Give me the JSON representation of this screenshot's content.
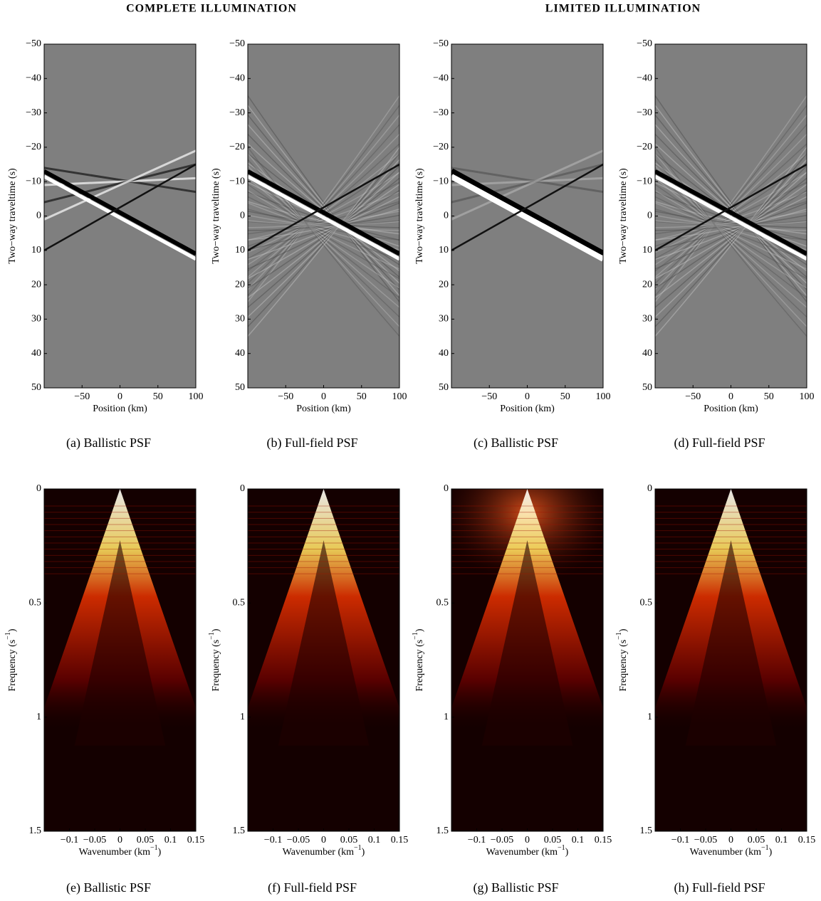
{
  "headers": [
    "COMPLETE ILLUMINATION",
    "LIMITED ILLUMINATION"
  ],
  "chart_data": [
    {
      "type": "image",
      "colormap": "gray",
      "caption": "(a) Ballistic PSF",
      "xlabel": "Position (km)",
      "ylabel": "Two−way traveltime (s)",
      "xlim": [
        -100,
        100
      ],
      "ylim": [
        -50,
        50
      ],
      "yreverse": true,
      "xticks": [
        {
          "value": -50,
          "label": "−50"
        },
        0,
        50,
        100
      ],
      "yticks": [
        {
          "value": -50,
          "label": "−50"
        },
        {
          "value": -40,
          "label": "−40"
        },
        {
          "value": -30,
          "label": "−30"
        },
        {
          "value": -20,
          "label": "−20"
        },
        {
          "value": -10,
          "label": "−10"
        },
        0,
        10,
        20,
        30,
        40,
        50
      ]
    },
    {
      "type": "image",
      "colormap": "gray",
      "caption": "(b) Full-field PSF",
      "xlabel": "Position (km)",
      "ylabel": "Two−way traveltime (s)",
      "xlim": [
        -100,
        100
      ],
      "ylim": [
        -50,
        50
      ],
      "yreverse": true,
      "xticks": [
        {
          "value": -50,
          "label": "−50"
        },
        0,
        50,
        100
      ],
      "yticks": [
        {
          "value": -50,
          "label": "−50"
        },
        {
          "value": -40,
          "label": "−40"
        },
        {
          "value": -30,
          "label": "−30"
        },
        {
          "value": -20,
          "label": "−20"
        },
        {
          "value": -10,
          "label": "−10"
        },
        0,
        10,
        20,
        30,
        40,
        50
      ]
    },
    {
      "type": "image",
      "colormap": "gray",
      "caption": "(c) Ballistic PSF",
      "xlabel": "Position (km)",
      "ylabel": "Two−way traveltime (s)",
      "xlim": [
        -100,
        100
      ],
      "ylim": [
        -50,
        50
      ],
      "yreverse": true,
      "xticks": [
        {
          "value": -50,
          "label": "−50"
        },
        0,
        50,
        100
      ],
      "yticks": [
        {
          "value": -50,
          "label": "−50"
        },
        {
          "value": -40,
          "label": "−40"
        },
        {
          "value": -30,
          "label": "−30"
        },
        {
          "value": -20,
          "label": "−20"
        },
        {
          "value": -10,
          "label": "−10"
        },
        0,
        10,
        20,
        30,
        40,
        50
      ]
    },
    {
      "type": "image",
      "colormap": "gray",
      "caption": "(d) Full-field PSF",
      "xlabel": "Position (km)",
      "ylabel": "Two−way traveltime (s)",
      "xlim": [
        -100,
        100
      ],
      "ylim": [
        -50,
        50
      ],
      "yreverse": true,
      "xticks": [
        {
          "value": -50,
          "label": "−50"
        },
        0,
        50,
        100
      ],
      "yticks": [
        {
          "value": -50,
          "label": "−50"
        },
        {
          "value": -40,
          "label": "−40"
        },
        {
          "value": -30,
          "label": "−30"
        },
        {
          "value": -20,
          "label": "−20"
        },
        {
          "value": -10,
          "label": "−10"
        },
        0,
        10,
        20,
        30,
        40,
        50
      ]
    },
    {
      "type": "image",
      "colormap": "hot",
      "caption": "(e) Ballistic PSF",
      "xlabel": {
        "text": "Wavenumber (km",
        "sup": "−1",
        "end": ")"
      },
      "ylabel": {
        "text": "Frequency (s",
        "sup": "−1",
        "end": ")"
      },
      "xlim": [
        -0.15,
        0.15
      ],
      "ylim": [
        0,
        1.5
      ],
      "yreverse": true,
      "xticks": [
        {
          "value": -0.1,
          "label": "−0.1"
        },
        {
          "value": -0.05,
          "label": "−0.05"
        },
        0,
        0.05,
        0.1,
        0.15
      ],
      "yticks": [
        0,
        0.5,
        1,
        1.5
      ]
    },
    {
      "type": "image",
      "colormap": "hot",
      "caption": "(f) Full-field PSF",
      "xlabel": {
        "text": "Wavenumber (km",
        "sup": "−1",
        "end": ")"
      },
      "ylabel": {
        "text": "Frequency (s",
        "sup": "−1",
        "end": ")"
      },
      "xlim": [
        -0.15,
        0.15
      ],
      "ylim": [
        0,
        1.5
      ],
      "yreverse": true,
      "xticks": [
        {
          "value": -0.1,
          "label": "−0.1"
        },
        {
          "value": -0.05,
          "label": "−0.05"
        },
        0,
        0.05,
        0.1,
        0.15
      ],
      "yticks": [
        0,
        0.5,
        1,
        1.5
      ]
    },
    {
      "type": "image",
      "colormap": "hot",
      "caption": "(g) Ballistic PSF",
      "xlabel": {
        "text": "Wavenumber (km",
        "sup": "−1",
        "end": ")"
      },
      "ylabel": {
        "text": "Frequency (s",
        "sup": "−1",
        "end": ")"
      },
      "xlim": [
        -0.15,
        0.15
      ],
      "ylim": [
        0,
        1.5
      ],
      "yreverse": true,
      "xticks": [
        {
          "value": -0.1,
          "label": "−0.1"
        },
        {
          "value": -0.05,
          "label": "−0.05"
        },
        0,
        0.05,
        0.1,
        0.15
      ],
      "yticks": [
        0,
        0.5,
        1,
        1.5
      ]
    },
    {
      "type": "image",
      "colormap": "hot",
      "caption": "(h) Full-field PSF",
      "xlabel": {
        "text": "Wavenumber (km",
        "sup": "−1",
        "end": ")"
      },
      "ylabel": {
        "text": "Frequency (s",
        "sup": "−1",
        "end": ")"
      },
      "xlim": [
        -0.15,
        0.15
      ],
      "ylim": [
        0,
        1.5
      ],
      "yreverse": true,
      "xticks": [
        {
          "value": -0.1,
          "label": "−0.1"
        },
        {
          "value": -0.05,
          "label": "−0.05"
        },
        0,
        0.05,
        0.1,
        0.15
      ],
      "yticks": [
        0,
        0.5,
        1,
        1.5
      ]
    }
  ]
}
